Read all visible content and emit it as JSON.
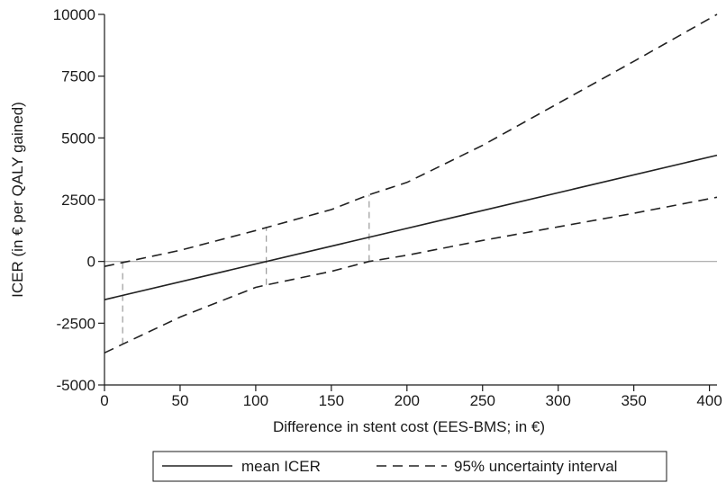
{
  "chart_data": {
    "type": "line",
    "xlabel": "Difference in stent cost (EES-BMS; in €)",
    "ylabel": "ICER (in € per QALY gained)",
    "xlim": [
      0,
      405
    ],
    "ylim": [
      -5000,
      10000
    ],
    "x_ticks": [
      0,
      50,
      100,
      150,
      200,
      250,
      300,
      350,
      400
    ],
    "y_ticks": [
      -5000,
      -2500,
      0,
      2500,
      5000,
      7500,
      10000
    ],
    "x_tick_labels": [
      "0",
      "50",
      "100",
      "150",
      "200",
      "250",
      "300",
      "350",
      "400"
    ],
    "y_tick_labels": [
      "-5000",
      "-2500",
      "0",
      "2500",
      "5000",
      "7500",
      "10000"
    ],
    "zero_line": true,
    "grid": false,
    "legend_position": "bottom",
    "series": [
      {
        "name": "mean ICER",
        "style": "solid",
        "color": "#222222",
        "points": [
          [
            0,
            -1550
          ],
          [
            405,
            4300
          ]
        ]
      },
      {
        "name": "95% uncertainty interval",
        "style": "dashed",
        "color": "#222222",
        "points": [
          [
            0,
            -200
          ],
          [
            50,
            450
          ],
          [
            100,
            1250
          ],
          [
            150,
            2100
          ],
          [
            175,
            2700
          ],
          [
            200,
            3200
          ],
          [
            250,
            4700
          ],
          [
            300,
            6400
          ],
          [
            350,
            8100
          ],
          [
            405,
            10000
          ]
        ]
      },
      {
        "name": "",
        "style": "dashed",
        "color": "#222222",
        "points": [
          [
            0,
            -3700
          ],
          [
            12,
            -3350
          ],
          [
            50,
            -2250
          ],
          [
            100,
            -1050
          ],
          [
            107,
            -950
          ],
          [
            150,
            -400
          ],
          [
            175,
            0
          ],
          [
            200,
            250
          ],
          [
            250,
            850
          ],
          [
            300,
            1400
          ],
          [
            350,
            1950
          ],
          [
            405,
            2600
          ]
        ]
      }
    ],
    "reference_lines": [
      {
        "x": 12,
        "y_from": -3350,
        "y_to": 0
      },
      {
        "x": 107,
        "y_from": -950,
        "y_to": 1400
      },
      {
        "x": 175,
        "y_from": 0,
        "y_to": 2700
      }
    ],
    "legend": [
      "mean ICER",
      "95% uncertainty interval"
    ]
  }
}
